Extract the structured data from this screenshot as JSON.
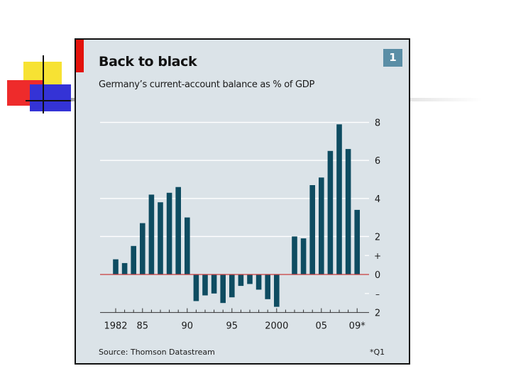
{
  "chart_data": {
    "type": "bar",
    "title": "Back to black",
    "subtitle": "Germany’s current-account balance as % of GDP",
    "chart_number": "1",
    "source": "Source: Thomson Datastream",
    "footnote": "*Q1",
    "x": [
      1982,
      1983,
      1984,
      1985,
      1986,
      1987,
      1988,
      1989,
      1990,
      1991,
      1992,
      1993,
      1994,
      1995,
      1996,
      1997,
      1998,
      1999,
      2000,
      2001,
      2002,
      2003,
      2004,
      2005,
      2006,
      2007,
      2008,
      2009
    ],
    "values": [
      0.8,
      0.6,
      1.5,
      2.7,
      4.2,
      3.8,
      4.3,
      4.6,
      3.0,
      -1.4,
      -1.1,
      -1.0,
      -1.5,
      -1.2,
      -0.6,
      -0.5,
      -0.8,
      -1.3,
      -1.7,
      null,
      2.0,
      1.9,
      4.7,
      5.1,
      6.5,
      7.9,
      6.6,
      3.4
    ],
    "x_tick_labels": [
      {
        "x": 1982,
        "label": "1982"
      },
      {
        "x": 1985,
        "label": "85"
      },
      {
        "x": 1990,
        "label": "90"
      },
      {
        "x": 1995,
        "label": "95"
      },
      {
        "x": 2000,
        "label": "2000"
      },
      {
        "x": 2005,
        "label": "05"
      },
      {
        "x": 2009,
        "label": "09*"
      }
    ],
    "y_ticks": [
      {
        "value": 8,
        "label": "8"
      },
      {
        "value": 6,
        "label": "6"
      },
      {
        "value": 4,
        "label": "4"
      },
      {
        "value": 2,
        "label": "2"
      },
      {
        "value": 1,
        "label": "+"
      },
      {
        "value": 0,
        "label": "0"
      },
      {
        "value": -1,
        "label": "–"
      },
      {
        "value": -2,
        "label": "2"
      }
    ],
    "ylim": [
      -2,
      8
    ],
    "xlabel": "",
    "ylabel": "",
    "grid": true,
    "legend": "none",
    "colors": {
      "bar": "#0e4c61",
      "zero_line": "#c83c3c",
      "grid": "#ffffff",
      "background": "#dbe3e8",
      "accent": "#e3120b",
      "badge": "#5a8ea6"
    }
  }
}
